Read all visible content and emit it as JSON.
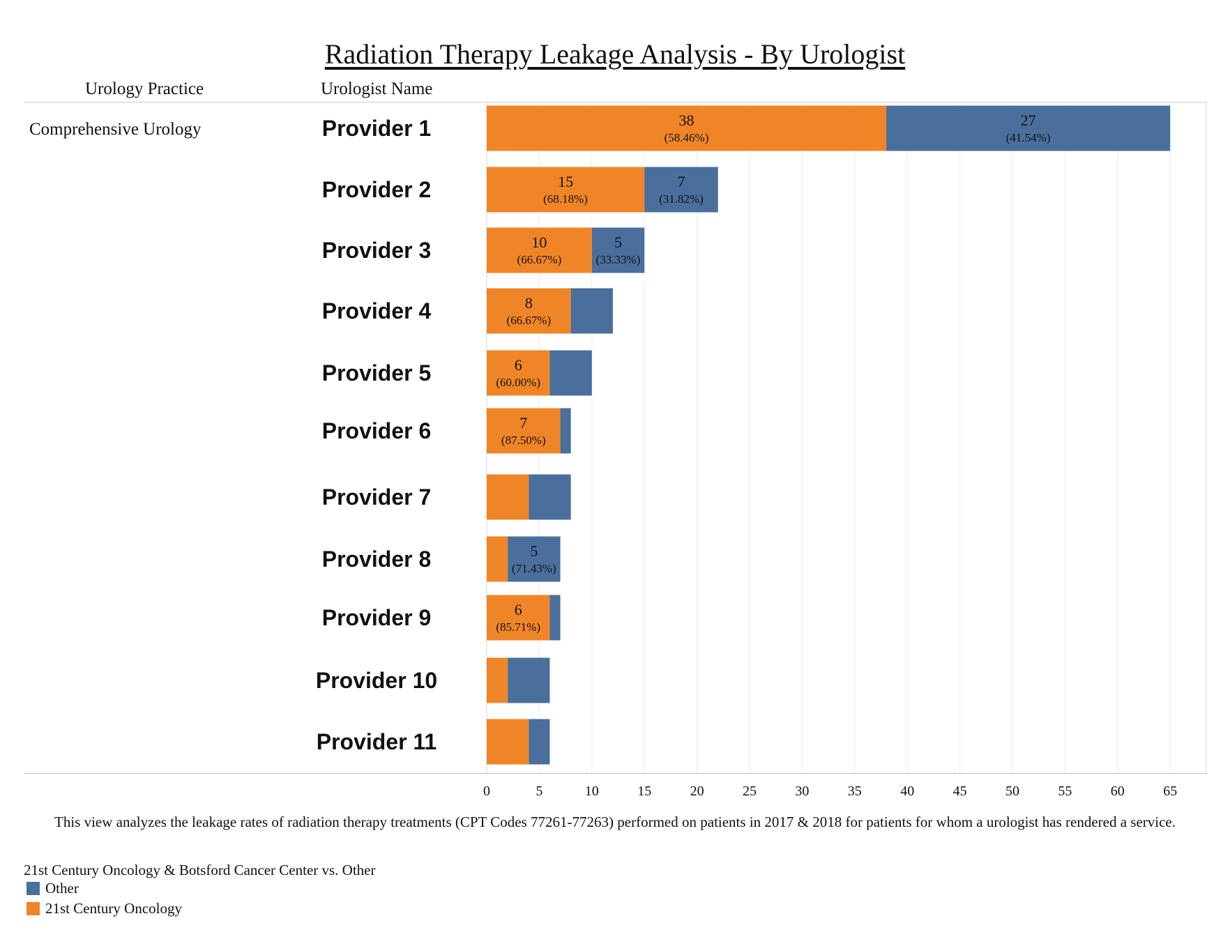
{
  "chart_data": {
    "type": "bar",
    "orientation": "horizontal",
    "stacked": true,
    "title": "Radiation Therapy Leakage Analysis - By Urologist",
    "row_headers": {
      "practice": "Urology Practice",
      "urologist": "Urologist Name"
    },
    "practice": "Comprehensive Urology",
    "categories": [
      "Provider 1",
      "Provider 2",
      "Provider 3",
      "Provider 4",
      "Provider 5",
      "Provider 6",
      "Provider 7",
      "Provider 8",
      "Provider 9",
      "Provider 10",
      "Provider 11"
    ],
    "series": [
      {
        "name": "21st Century Oncology",
        "color": "#f08527",
        "values": [
          38,
          15,
          10,
          8,
          6,
          7,
          4,
          2,
          6,
          2,
          4
        ],
        "labels": [
          {
            "value": "38",
            "percent": "(58.46%)"
          },
          {
            "value": "15",
            "percent": "(68.18%)"
          },
          {
            "value": "10",
            "percent": "(66.67%)"
          },
          {
            "value": "8",
            "percent": "(66.67%)"
          },
          {
            "value": "6",
            "percent": "(60.00%)"
          },
          {
            "value": "7",
            "percent": "(87.50%)"
          },
          null,
          null,
          {
            "value": "6",
            "percent": "(85.71%)"
          },
          null,
          null
        ]
      },
      {
        "name": "Other",
        "color": "#4a6f9c",
        "values": [
          27,
          7,
          5,
          4,
          4,
          1,
          4,
          5,
          1,
          4,
          2
        ],
        "labels": [
          {
            "value": "27",
            "percent": "(41.54%)"
          },
          {
            "value": "7",
            "percent": "(31.82%)"
          },
          {
            "value": "5",
            "percent": "(33.33%)"
          },
          null,
          null,
          null,
          null,
          {
            "value": "5",
            "percent": "(71.43%)"
          },
          null,
          null,
          null
        ]
      }
    ],
    "x_ticks": [
      0,
      5,
      10,
      15,
      20,
      25,
      30,
      35,
      40,
      45,
      50,
      55,
      60,
      65
    ],
    "xlim": [
      0,
      68
    ],
    "grid": true,
    "caption": "This view analyzes the leakage rates of radiation therapy treatments (CPT Codes 77261-77263) performed on patients in 2017 & 2018 for patients for whom a urologist has rendered a service.",
    "legend": {
      "title": "21st Century Oncology & Botsford Cancer Center vs. Other",
      "items": [
        "Other",
        "21st Century Oncology"
      ],
      "placement": "bottom-left"
    }
  }
}
